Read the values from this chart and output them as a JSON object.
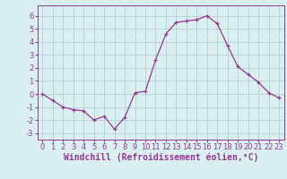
{
  "x": [
    0,
    1,
    2,
    3,
    4,
    5,
    6,
    7,
    8,
    9,
    10,
    11,
    12,
    13,
    14,
    15,
    16,
    17,
    18,
    19,
    20,
    21,
    22,
    23
  ],
  "y": [
    0,
    -0.5,
    -1,
    -1.2,
    -1.3,
    -2,
    -1.7,
    -2.7,
    -1.8,
    0.1,
    0.2,
    2.6,
    4.6,
    5.5,
    5.6,
    5.7,
    6.0,
    5.4,
    3.7,
    2.1,
    1.5,
    0.9,
    0.1,
    -0.3
  ],
  "line_color": "#993399",
  "marker": "+",
  "bg_color": "#d8f0f0",
  "grid_color": "#b0c8c8",
  "xlabel": "Windchill (Refroidissement éolien,°C)",
  "xlabel_fontsize": 7,
  "tick_fontsize": 6,
  "ylim": [
    -3.5,
    6.8
  ],
  "yticks": [
    -3,
    -2,
    -1,
    0,
    1,
    2,
    3,
    4,
    5,
    6
  ],
  "xticks": [
    0,
    1,
    2,
    3,
    4,
    5,
    6,
    7,
    8,
    9,
    10,
    11,
    12,
    13,
    14,
    15,
    16,
    17,
    18,
    19,
    20,
    21,
    22,
    23
  ]
}
